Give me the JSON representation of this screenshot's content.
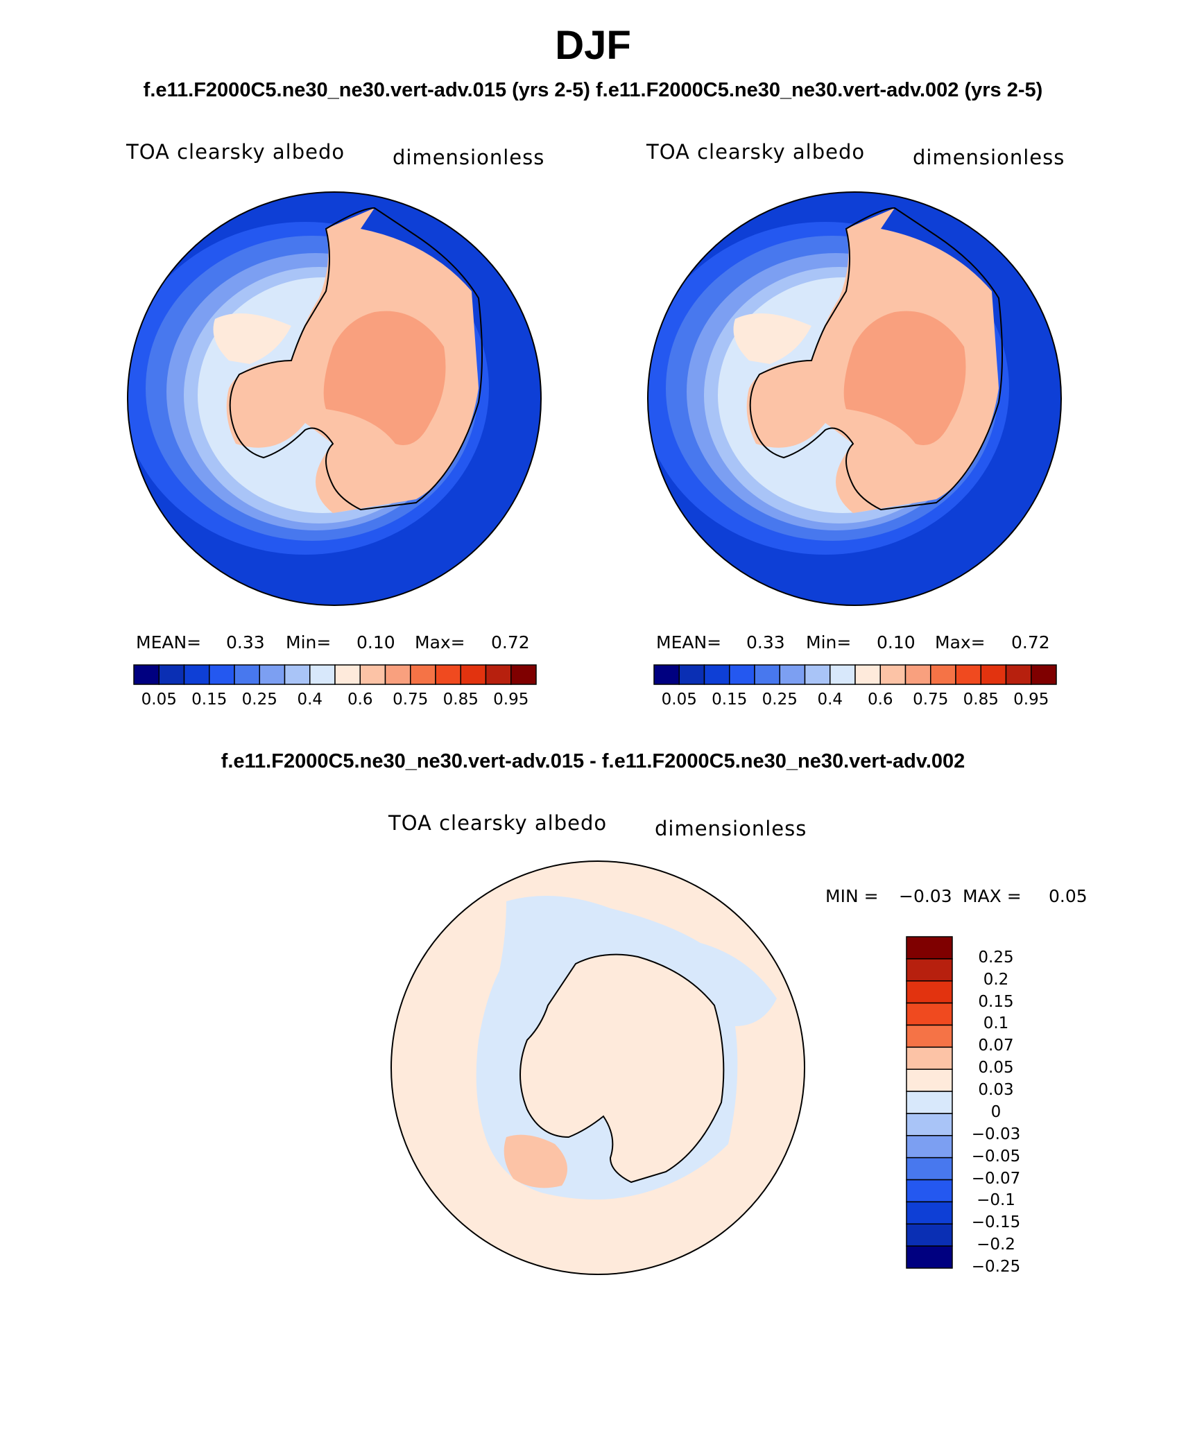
{
  "page": {
    "title": "DJF",
    "subtitle_top": "f.e11.F2000C5.ne30_ne30.vert-adv.015 (yrs 2-5)  f.e11.F2000C5.ne30_ne30.vert-adv.002 (yrs 2-5)",
    "subtitle_diff": "f.e11.F2000C5.ne30_ne30.vert-adv.015 - f.e11.F2000C5.ne30_ne30.vert-adv.002"
  },
  "panels": [
    {
      "variable": "TOA clearsky albedo",
      "units": "dimensionless",
      "stats": {
        "mean_label": "MEAN=",
        "mean": "0.33",
        "min_label": "Min=",
        "min": "0.10",
        "max_label": "Max=",
        "max": "0.72"
      }
    },
    {
      "variable": "TOA clearsky albedo",
      "units": "dimensionless",
      "stats": {
        "mean_label": "MEAN=",
        "mean": "0.33",
        "min_label": "Min=",
        "min": "0.10",
        "max_label": "Max=",
        "max": "0.72"
      }
    },
    {
      "variable": "TOA clearsky albedo",
      "units": "dimensionless",
      "stats": {
        "min_label": "MIN =",
        "min": "−0.03",
        "max_label": "MAX =",
        "max": "0.05"
      }
    }
  ],
  "colorbar_main": {
    "colors": [
      "#000080",
      "#0a2fb4",
      "#0e3fd6",
      "#2458f0",
      "#4878ee",
      "#7c9ff2",
      "#a9c4f7",
      "#d8e8fb",
      "#feeadb",
      "#fcc3a6",
      "#f9a07e",
      "#f57346",
      "#f04a1f",
      "#e2330f",
      "#b7200e",
      "#7f0000"
    ],
    "tick_labels": [
      "0.05",
      "0.15",
      "0.25",
      "0.4",
      "0.6",
      "0.75",
      "0.85",
      "0.95"
    ]
  },
  "colorbar_diff": {
    "colors_top_to_bottom": [
      "#7f0000",
      "#b7200e",
      "#e2330f",
      "#f04a1f",
      "#f57346",
      "#fcc3a6",
      "#feeadb",
      "#d8e8fb",
      "#a9c4f7",
      "#7c9ff2",
      "#4878ee",
      "#2458f0",
      "#0e3fd6",
      "#0a2fb4",
      "#000080"
    ],
    "tick_labels": [
      "0.25",
      "0.2",
      "0.15",
      "0.1",
      "0.07",
      "0.05",
      "0.03",
      "0",
      "−0.03",
      "−0.05",
      "−0.07",
      "−0.1",
      "−0.15",
      "−0.2",
      "−0.25"
    ]
  }
}
